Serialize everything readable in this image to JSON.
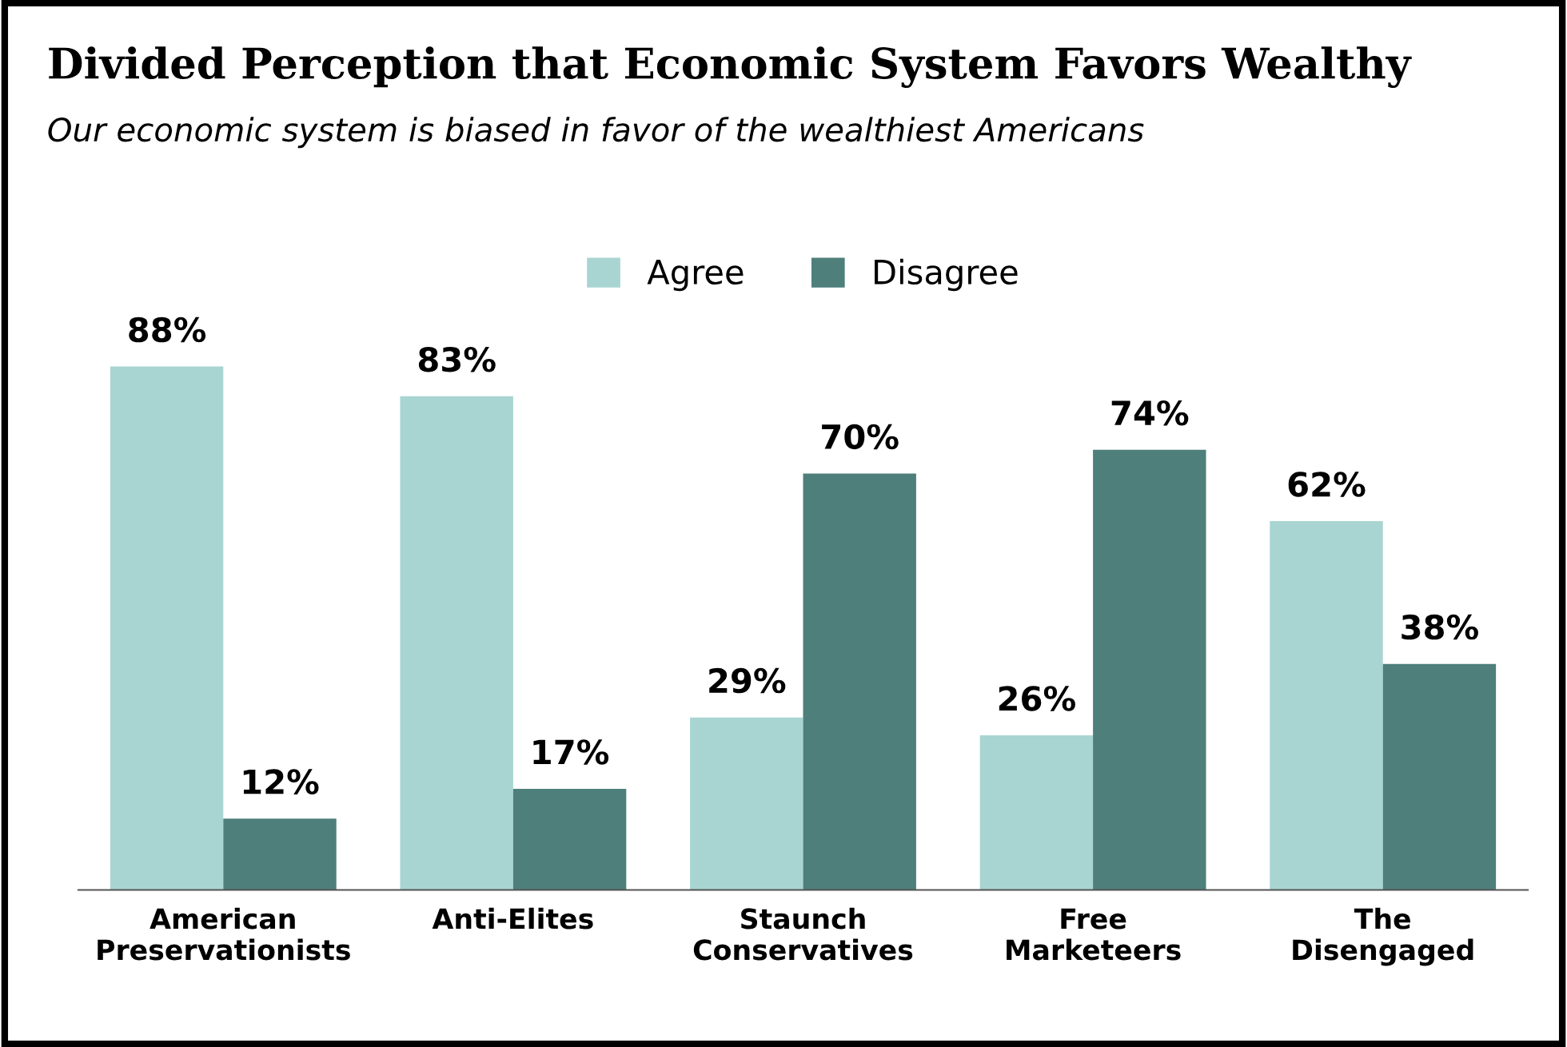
{
  "chart_data": {
    "type": "bar",
    "title": "Divided Perception that Economic System Favors Wealthy",
    "subtitle": "Our economic system is biased in favor of the wealthiest Americans",
    "categories": [
      "American\nPreservationists",
      "Anti-Elites",
      "Staunch\nConservatives",
      "Free\nMarketeers",
      "The\nDisengaged"
    ],
    "series": [
      {
        "name": "Agree",
        "color": "#a8d5d1",
        "values": [
          88,
          83,
          29,
          26,
          62
        ],
        "value_labels": [
          "88%",
          "83%",
          "29%",
          "26%",
          "62%"
        ]
      },
      {
        "name": "Disagree",
        "color": "#4e7f7b",
        "values": [
          12,
          17,
          70,
          74,
          38
        ],
        "value_labels": [
          "12%",
          "17%",
          "70%",
          "74%",
          "38%"
        ]
      }
    ],
    "legend": "top",
    "grid": false,
    "tick_labels": "x"
  }
}
